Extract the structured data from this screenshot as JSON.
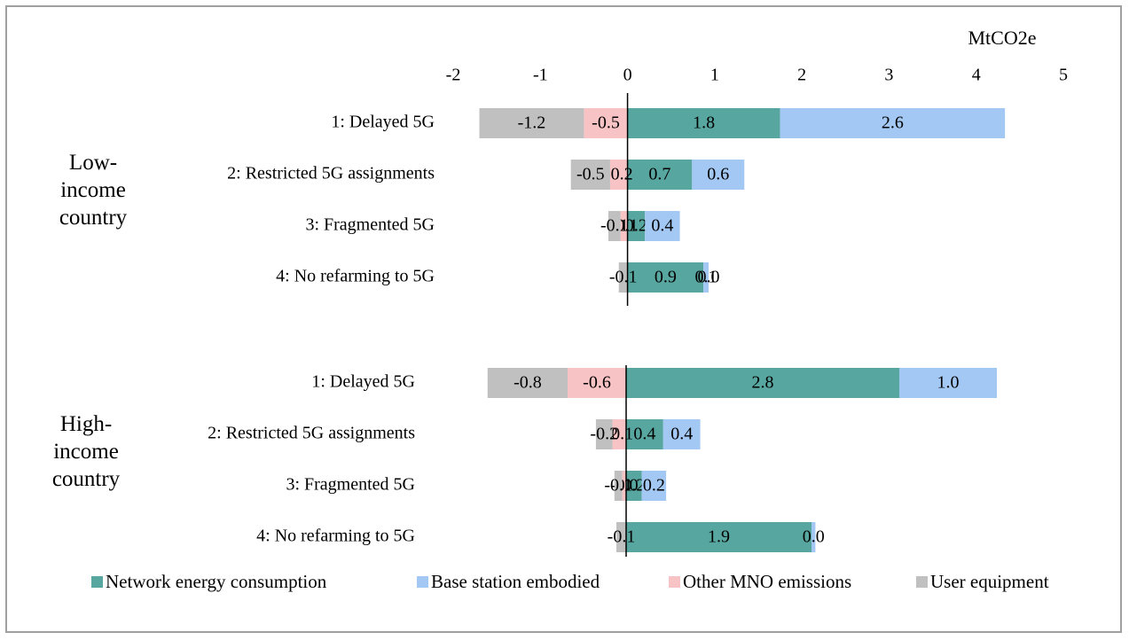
{
  "chart_data": [
    {
      "type": "stacked_barh",
      "title": "Low-income country",
      "x_label": "MtCO2e",
      "categories": [
        "1: Delayed 5G",
        "2: Restricted 5G assignments",
        "3: Fragmented 5G",
        "4: No refarming to 5G"
      ],
      "series": [
        {
          "name": "Network energy consumption",
          "color": "#57a69f",
          "values": [
            1.75,
            0.74,
            0.2,
            0.87
          ],
          "value_labels": [
            "1.8",
            "0.7",
            "0.2",
            "0.9"
          ]
        },
        {
          "name": "Base station embodied",
          "color": "#a4c8f4",
          "values": [
            2.58,
            0.6,
            0.4,
            0.06
          ],
          "value_labels": [
            "2.6",
            "0.6",
            "0.4",
            "0.1"
          ]
        },
        {
          "name": "Other MNO emissions",
          "color": "#f8c3c4",
          "values": [
            -0.5,
            -0.2,
            -0.08,
            0
          ],
          "value_labels": [
            "-0.5",
            "-0.2",
            "-0.1",
            "0.0"
          ]
        },
        {
          "name": "User equipment",
          "color": "#c0c0c0",
          "values": [
            -1.2,
            -0.45,
            -0.14,
            -0.1
          ],
          "value_labels": [
            "-1.2",
            "-0.5",
            "-0.1",
            "-0.1"
          ]
        }
      ],
      "xlim": [
        -2,
        5
      ],
      "xticks": [
        -2,
        -1,
        0,
        1,
        2,
        3,
        4,
        5
      ]
    },
    {
      "type": "stacked_barh",
      "title": "High-income country",
      "categories": [
        "1: Delayed 5G",
        "2: Restricted 5G assignments",
        "3: Fragmented 5G",
        "4: No refarming to 5G"
      ],
      "series": [
        {
          "color": "#57a69f",
          "values": [
            2.8,
            0.38,
            0.16,
            1.9
          ],
          "value_labels": [
            "2.8",
            "0.4",
            "0.2",
            "1.9"
          ]
        },
        {
          "color": "#a4c8f4",
          "values": [
            1.0,
            0.38,
            0.25,
            0.04
          ],
          "value_labels": [
            "1.0",
            "0.4",
            "0.2",
            "0.0"
          ]
        },
        {
          "color": "#f8c3c4",
          "values": [
            -0.6,
            -0.14,
            -0.04,
            0
          ],
          "value_labels": [
            "-0.6",
            "-0.1",
            "-0.0",
            null
          ]
        },
        {
          "color": "#c0c0c0",
          "values": [
            -0.82,
            -0.17,
            -0.08,
            -0.1
          ],
          "value_labels": [
            "-0.8",
            "-0.2",
            "-0.1",
            "-0.1"
          ]
        }
      ],
      "xlim": [
        -1.5,
        4.5
      ]
    }
  ]
}
